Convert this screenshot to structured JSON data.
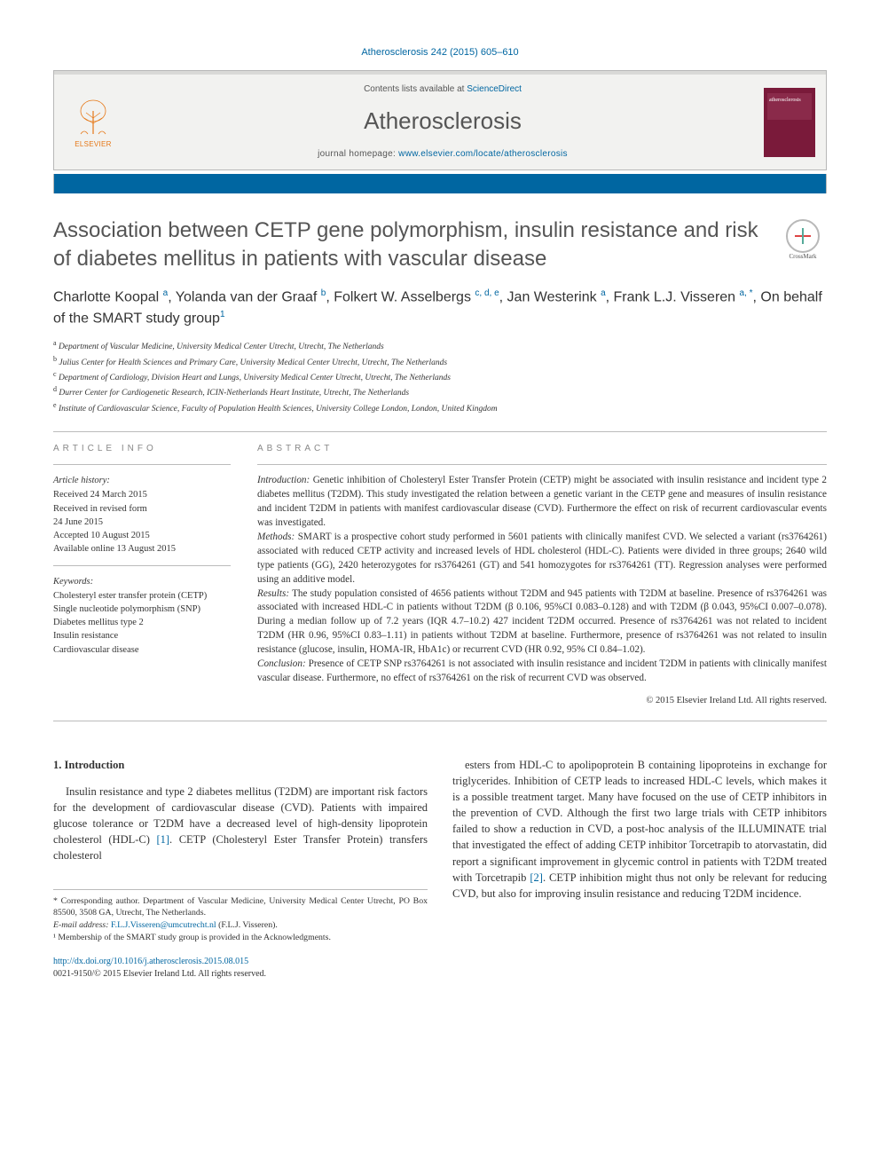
{
  "citation": "Atherosclerosis 242 (2015) 605–610",
  "header": {
    "contents_prefix": "Contents lists available at ",
    "contents_link": "ScienceDirect",
    "journal": "Atherosclerosis",
    "homepage_prefix": "journal homepage: ",
    "homepage_url": "www.elsevier.com/locate/atherosclerosis",
    "elsevier": "ELSEVIER"
  },
  "crossmark": "CrossMark",
  "title": "Association between CETP gene polymorphism, insulin resistance and risk of diabetes mellitus in patients with vascular disease",
  "authors_html": "Charlotte Koopal <sup>a</sup>, Yolanda van der Graaf <sup>b</sup>, Folkert W. Asselbergs <sup>c, d, e</sup>, Jan Westerink <sup>a</sup>, Frank L.J. Visseren <sup>a, *</sup>, On behalf of the SMART study group<sup>1</sup>",
  "affiliations": [
    {
      "sup": "a",
      "text": "Department of Vascular Medicine, University Medical Center Utrecht, Utrecht, The Netherlands"
    },
    {
      "sup": "b",
      "text": "Julius Center for Health Sciences and Primary Care, University Medical Center Utrecht, Utrecht, The Netherlands"
    },
    {
      "sup": "c",
      "text": "Department of Cardiology, Division Heart and Lungs, University Medical Center Utrecht, Utrecht, The Netherlands"
    },
    {
      "sup": "d",
      "text": "Durrer Center for Cardiogenetic Research, ICIN-Netherlands Heart Institute, Utrecht, The Netherlands"
    },
    {
      "sup": "e",
      "text": "Institute of Cardiovascular Science, Faculty of Population Health Sciences, University College London, London, United Kingdom"
    }
  ],
  "article_info": {
    "label": "ARTICLE INFO",
    "history_label": "Article history:",
    "history": [
      "Received 24 March 2015",
      "Received in revised form",
      "24 June 2015",
      "Accepted 10 August 2015",
      "Available online 13 August 2015"
    ],
    "keywords_label": "Keywords:",
    "keywords": [
      "Cholesteryl ester transfer protein (CETP)",
      "Single nucleotide polymorphism (SNP)",
      "Diabetes mellitus type 2",
      "Insulin resistance",
      "Cardiovascular disease"
    ]
  },
  "abstract": {
    "label": "ABSTRACT",
    "intro_label": "Introduction:",
    "intro": " Genetic inhibition of Cholesteryl Ester Transfer Protein (CETP) might be associated with insulin resistance and incident type 2 diabetes mellitus (T2DM). This study investigated the relation between a genetic variant in the CETP gene and measures of insulin resistance and incident T2DM in patients with manifest cardiovascular disease (CVD). Furthermore the effect on risk of recurrent cardiovascular events was investigated.",
    "methods_label": "Methods:",
    "methods": " SMART is a prospective cohort study performed in 5601 patients with clinically manifest CVD. We selected a variant (rs3764261) associated with reduced CETP activity and increased levels of HDL cholesterol (HDL-C). Patients were divided in three groups; 2640 wild type patients (GG), 2420 heterozygotes for rs3764261 (GT) and 541 homozygotes for rs3764261 (TT). Regression analyses were performed using an additive model.",
    "results_label": "Results:",
    "results": " The study population consisted of 4656 patients without T2DM and 945 patients with T2DM at baseline. Presence of rs3764261 was associated with increased HDL-C in patients without T2DM (β 0.106, 95%CI 0.083–0.128) and with T2DM (β 0.043, 95%CI 0.007–0.078). During a median follow up of 7.2 years (IQR 4.7–10.2) 427 incident T2DM occurred. Presence of rs3764261 was not related to incident T2DM (HR 0.96, 95%CI 0.83–1.11) in patients without T2DM at baseline. Furthermore, presence of rs3764261 was not related to insulin resistance (glucose, insulin, HOMA-IR, HbA1c) or recurrent CVD (HR 0.92, 95% CI 0.84–1.02).",
    "conclusion_label": "Conclusion:",
    "conclusion": " Presence of CETP SNP rs3764261 is not associated with insulin resistance and incident T2DM in patients with clinically manifest vascular disease. Furthermore, no effect of rs3764261 on the risk of recurrent CVD was observed.",
    "copyright": "© 2015 Elsevier Ireland Ltd. All rights reserved."
  },
  "body": {
    "section_heading": "1. Introduction",
    "col1": "Insulin resistance and type 2 diabetes mellitus (T2DM) are important risk factors for the development of cardiovascular disease (CVD). Patients with impaired glucose tolerance or T2DM have a decreased level of high-density lipoprotein cholesterol (HDL-C) [1]. CETP (Cholesteryl Ester Transfer Protein) transfers cholesterol",
    "col2": "esters from HDL-C to apolipoprotein B containing lipoproteins in exchange for triglycerides. Inhibition of CETP leads to increased HDL-C levels, which makes it is a possible treatment target. Many have focused on the use of CETP inhibitors in the prevention of CVD. Although the first two large trials with CETP inhibitors failed to show a reduction in CVD, a post-hoc analysis of the ILLUMINATE trial that investigated the effect of adding CETP inhibitor Torcetrapib to atorvastatin, did report a significant improvement in glycemic control in patients with T2DM treated with Torcetrapib [2]. CETP inhibition might thus not only be relevant for reducing CVD, but also for improving insulin resistance and reducing T2DM incidence."
  },
  "footnotes": {
    "corr": "* Corresponding author. Department of Vascular Medicine, University Medical Center Utrecht, PO Box 85500, 3508 GA, Utrecht, The Netherlands.",
    "email_label": "E-mail address: ",
    "email": "F.L.J.Visseren@umcutrecht.nl",
    "email_suffix": " (F.L.J. Visseren).",
    "note1": "¹ Membership of the SMART study group is provided in the Acknowledgments."
  },
  "doi": {
    "url": "http://dx.doi.org/10.1016/j.atherosclerosis.2015.08.015",
    "issn_line": "0021-9150/© 2015 Elsevier Ireland Ltd. All rights reserved."
  }
}
